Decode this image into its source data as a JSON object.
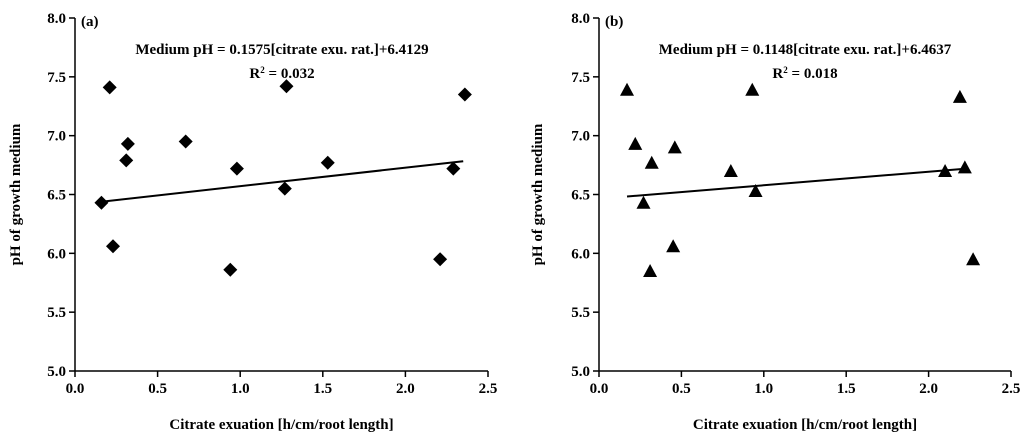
{
  "chart_data": [
    {
      "type": "scatter",
      "panel_label": "(a)",
      "xlabel": "Citrate exuation [h/cm/root length]",
      "ylabel": "pH of growth medium",
      "xlim": [
        0.0,
        2.5
      ],
      "ylim": [
        5.0,
        8.0
      ],
      "xticks": [
        "0.0",
        "0.5",
        "1.0",
        "1.5",
        "2.0",
        "2.5"
      ],
      "yticks": [
        "5.0",
        "5.5",
        "6.0",
        "6.5",
        "7.0",
        "7.5",
        "8.0"
      ],
      "marker": "diamond",
      "grid": false,
      "equation": "Medium pH = 0.1575[citrate exu. rat.]+6.4129",
      "r2_prefix": "R",
      "r2_exponent": "2",
      "r2_value": " = 0.032",
      "trendline": {
        "slope": 0.1575,
        "intercept": 6.4129,
        "x_start": 0.16,
        "x_end": 2.35
      },
      "points": [
        {
          "x": 0.16,
          "y": 6.43
        },
        {
          "x": 0.21,
          "y": 7.41
        },
        {
          "x": 0.23,
          "y": 6.06
        },
        {
          "x": 0.31,
          "y": 6.79
        },
        {
          "x": 0.32,
          "y": 6.93
        },
        {
          "x": 0.67,
          "y": 6.95
        },
        {
          "x": 0.94,
          "y": 5.86
        },
        {
          "x": 0.98,
          "y": 6.72
        },
        {
          "x": 1.27,
          "y": 6.55
        },
        {
          "x": 1.28,
          "y": 7.42
        },
        {
          "x": 1.53,
          "y": 6.77
        },
        {
          "x": 2.21,
          "y": 5.95
        },
        {
          "x": 2.29,
          "y": 6.72
        },
        {
          "x": 2.36,
          "y": 7.35
        }
      ]
    },
    {
      "type": "scatter",
      "panel_label": "(b)",
      "xlabel": "Citrate exuation [h/cm/root length]",
      "ylabel": "pH of growth medium",
      "xlim": [
        0.0,
        2.5
      ],
      "ylim": [
        5.0,
        8.0
      ],
      "xticks": [
        "0.0",
        "0.5",
        "1.0",
        "1.5",
        "2.0",
        "2.5"
      ],
      "yticks": [
        "5.0",
        "5.5",
        "6.0",
        "6.5",
        "7.0",
        "7.5",
        "8.0"
      ],
      "marker": "triangle",
      "grid": false,
      "equation": "Medium pH = 0.1148[citrate exu. rat.]+6.4637",
      "r2_prefix": "R",
      "r2_exponent": "2",
      "r2_value": " = 0.018",
      "trendline": {
        "slope": 0.1148,
        "intercept": 6.4637,
        "x_start": 0.17,
        "x_end": 2.24
      },
      "points": [
        {
          "x": 0.17,
          "y": 7.39
        },
        {
          "x": 0.22,
          "y": 6.93
        },
        {
          "x": 0.27,
          "y": 6.43
        },
        {
          "x": 0.31,
          "y": 5.85
        },
        {
          "x": 0.32,
          "y": 6.77
        },
        {
          "x": 0.45,
          "y": 6.06
        },
        {
          "x": 0.46,
          "y": 6.9
        },
        {
          "x": 0.8,
          "y": 6.7
        },
        {
          "x": 0.93,
          "y": 7.39
        },
        {
          "x": 0.95,
          "y": 6.53
        },
        {
          "x": 2.1,
          "y": 6.7
        },
        {
          "x": 2.19,
          "y": 7.33
        },
        {
          "x": 2.22,
          "y": 6.73
        },
        {
          "x": 2.27,
          "y": 5.95
        }
      ]
    }
  ]
}
